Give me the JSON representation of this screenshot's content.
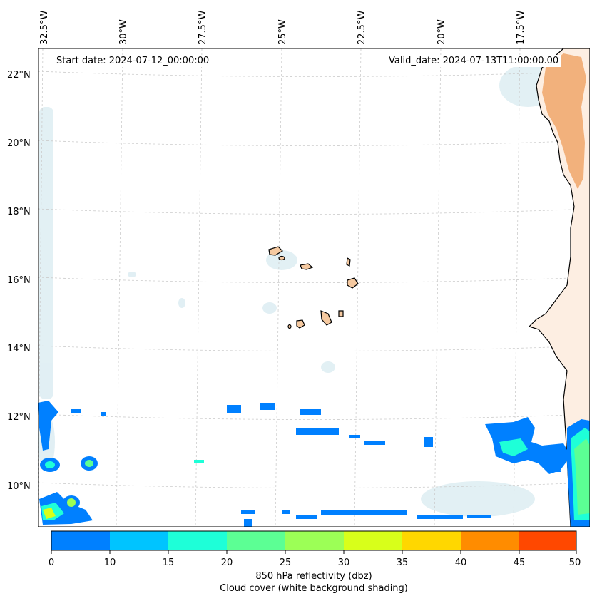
{
  "map": {
    "start_date": "Start date: 2024-07-12_00:00:00",
    "valid_date": "Valid_date: 2024-07-13T11:00:00.00",
    "lon_labels": [
      "32.5°W",
      "30°W",
      "27.5°W",
      "25°W",
      "22.5°W",
      "20°W",
      "17.5°W"
    ],
    "lat_labels": [
      "22°N",
      "20°N",
      "18°N",
      "16°N",
      "14°N",
      "12°N",
      "10°N"
    ]
  },
  "colorbar": {
    "ticks": [
      "0",
      "10",
      "15",
      "20",
      "25",
      "30",
      "35",
      "40",
      "45",
      "50"
    ],
    "colors": [
      "#0080ff",
      "#00c4ff",
      "#1effd8",
      "#5cff94",
      "#9cff56",
      "#d8ff1a",
      "#ffd700",
      "#ff8c00",
      "#ff4800"
    ],
    "label_line1": "850 hPa reflectivity (dbz)",
    "label_line2": "Cloud cover (white background shading)"
  },
  "style": {
    "land_color": "#f0a66a",
    "island_fill": "#f5c9a0",
    "cloud_color": "#d5e9f0",
    "radar_low": "#0080ff"
  }
}
